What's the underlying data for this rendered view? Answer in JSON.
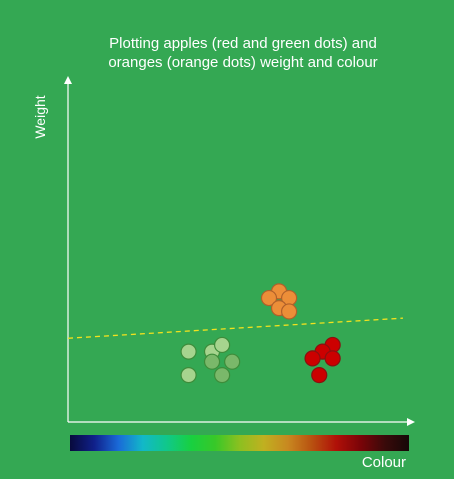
{
  "chart_data": {
    "type": "scatter",
    "title": "Plotting apples (red and green dots) and oranges (orange dots) weight and colour",
    "title_lines": [
      "Plotting apples (red and green dots) and",
      "oranges (orange dots) weight and colour"
    ],
    "xlabel": "Colour",
    "ylabel": "Weight",
    "xlim": [
      0,
      100
    ],
    "ylim": [
      0,
      100
    ],
    "grid": false,
    "colorbar": {
      "position": "bottom",
      "stops": [
        "#080a3c",
        "#10208a",
        "#1a6ad8",
        "#12b8c8",
        "#10c88a",
        "#18d040",
        "#38c828",
        "#8cc020",
        "#c0b020",
        "#c88820",
        "#b85010",
        "#b01008",
        "#7a0408",
        "#3a0a0a",
        "#150808"
      ]
    },
    "decision_boundary": {
      "style": "dashed",
      "color": "#f2e21e",
      "x": [
        0,
        100
      ],
      "y": [
        25,
        31
      ]
    },
    "series": [
      {
        "color": "#a6d48e",
        "edge_color": "#3e8c3a",
        "points": [
          {
            "x": 36,
            "y": 21,
            "shade": "#a6d48e"
          },
          {
            "x": 43,
            "y": 21,
            "shade": "#a6d48e"
          },
          {
            "x": 46,
            "y": 23,
            "shade": "#a6d48e"
          },
          {
            "x": 43,
            "y": 18,
            "shade": "#7ab86a"
          },
          {
            "x": 49,
            "y": 18,
            "shade": "#7ab86a"
          },
          {
            "x": 36,
            "y": 14,
            "shade": "#a6d48e"
          },
          {
            "x": 46,
            "y": 14,
            "shade": "#7ab86a"
          }
        ]
      },
      {
        "color": "#cc0000",
        "edge_color": "#8a1010",
        "points": [
          {
            "x": 79,
            "y": 23,
            "shade": "#cc0000"
          },
          {
            "x": 76,
            "y": 21,
            "shade": "#cc0000"
          },
          {
            "x": 73,
            "y": 19,
            "shade": "#cc0000"
          },
          {
            "x": 79,
            "y": 19,
            "shade": "#cc0000"
          },
          {
            "x": 75,
            "y": 14,
            "shade": "#cc0000"
          }
        ]
      },
      {
        "color": "#ec8e38",
        "edge_color": "#b0602a",
        "points": [
          {
            "x": 63,
            "y": 39,
            "shade": "#ec8e38"
          },
          {
            "x": 60,
            "y": 37,
            "shade": "#ec8e38"
          },
          {
            "x": 66,
            "y": 37,
            "shade": "#ec8e38"
          },
          {
            "x": 63,
            "y": 34,
            "shade": "#ec8e38"
          },
          {
            "x": 66,
            "y": 33,
            "shade": "#ec8e38"
          }
        ]
      }
    ]
  }
}
